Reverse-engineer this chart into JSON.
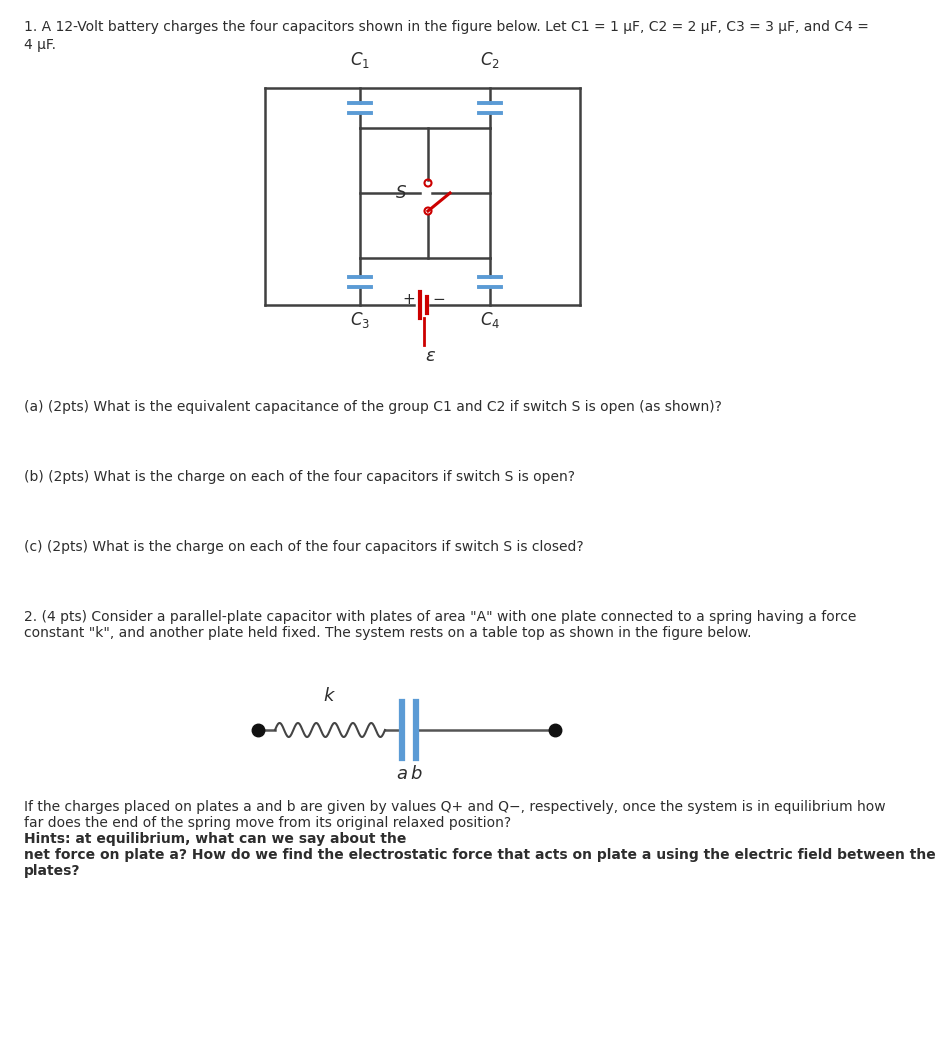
{
  "bg_color": "#ffffff",
  "text_color": "#2d2d2d",
  "q1_text_l1": "1. A 12-Volt battery charges the four capacitors shown in the figure below. Let C1 = 1 μF, C2 = 2 μF, C3 = 3 μF, and C4 =",
  "q1_text_l2": "4 μF.",
  "qa_text": "(a) (2pts) What is the equivalent capacitance of the group C1 and C2 if switch S is open (as shown)?",
  "qb_text": "(b) (2pts) What is the charge on each of the four capacitors if switch S is open?",
  "qc_text": "(c) (2pts) What is the charge on each of the four capacitors if switch S is closed?",
  "q2_text_l1": "2. (4 pts) Consider a parallel-plate capacitor with plates of area \"A\" with one plate connected to a spring having a force",
  "q2_text_l2": "constant \"k\", and another plate held fixed. The system rests on a table top as shown in the figure below.",
  "q2_bottom_l1": "If the charges placed on plates a and b are given by values Q+ and Q−, respectively, once the system is in equilibrium how",
  "q2_bottom_l2": "far does the end of the spring move from its original relaxed position? ",
  "q2_hint_l1": "Hints: at equilibrium, what can we say about the",
  "q2_hint_l2": "net force on plate a? How do we find the electrostatic force that acts on plate a using the electric field between the",
  "q2_hint_l3": "plates?",
  "cap_color": "#5b9bd5",
  "wire_color": "#404040",
  "sw_color": "#cc0000",
  "bat_color": "#cc0000",
  "plate_color": "#5b9bd5",
  "text_color_q": "#595959"
}
